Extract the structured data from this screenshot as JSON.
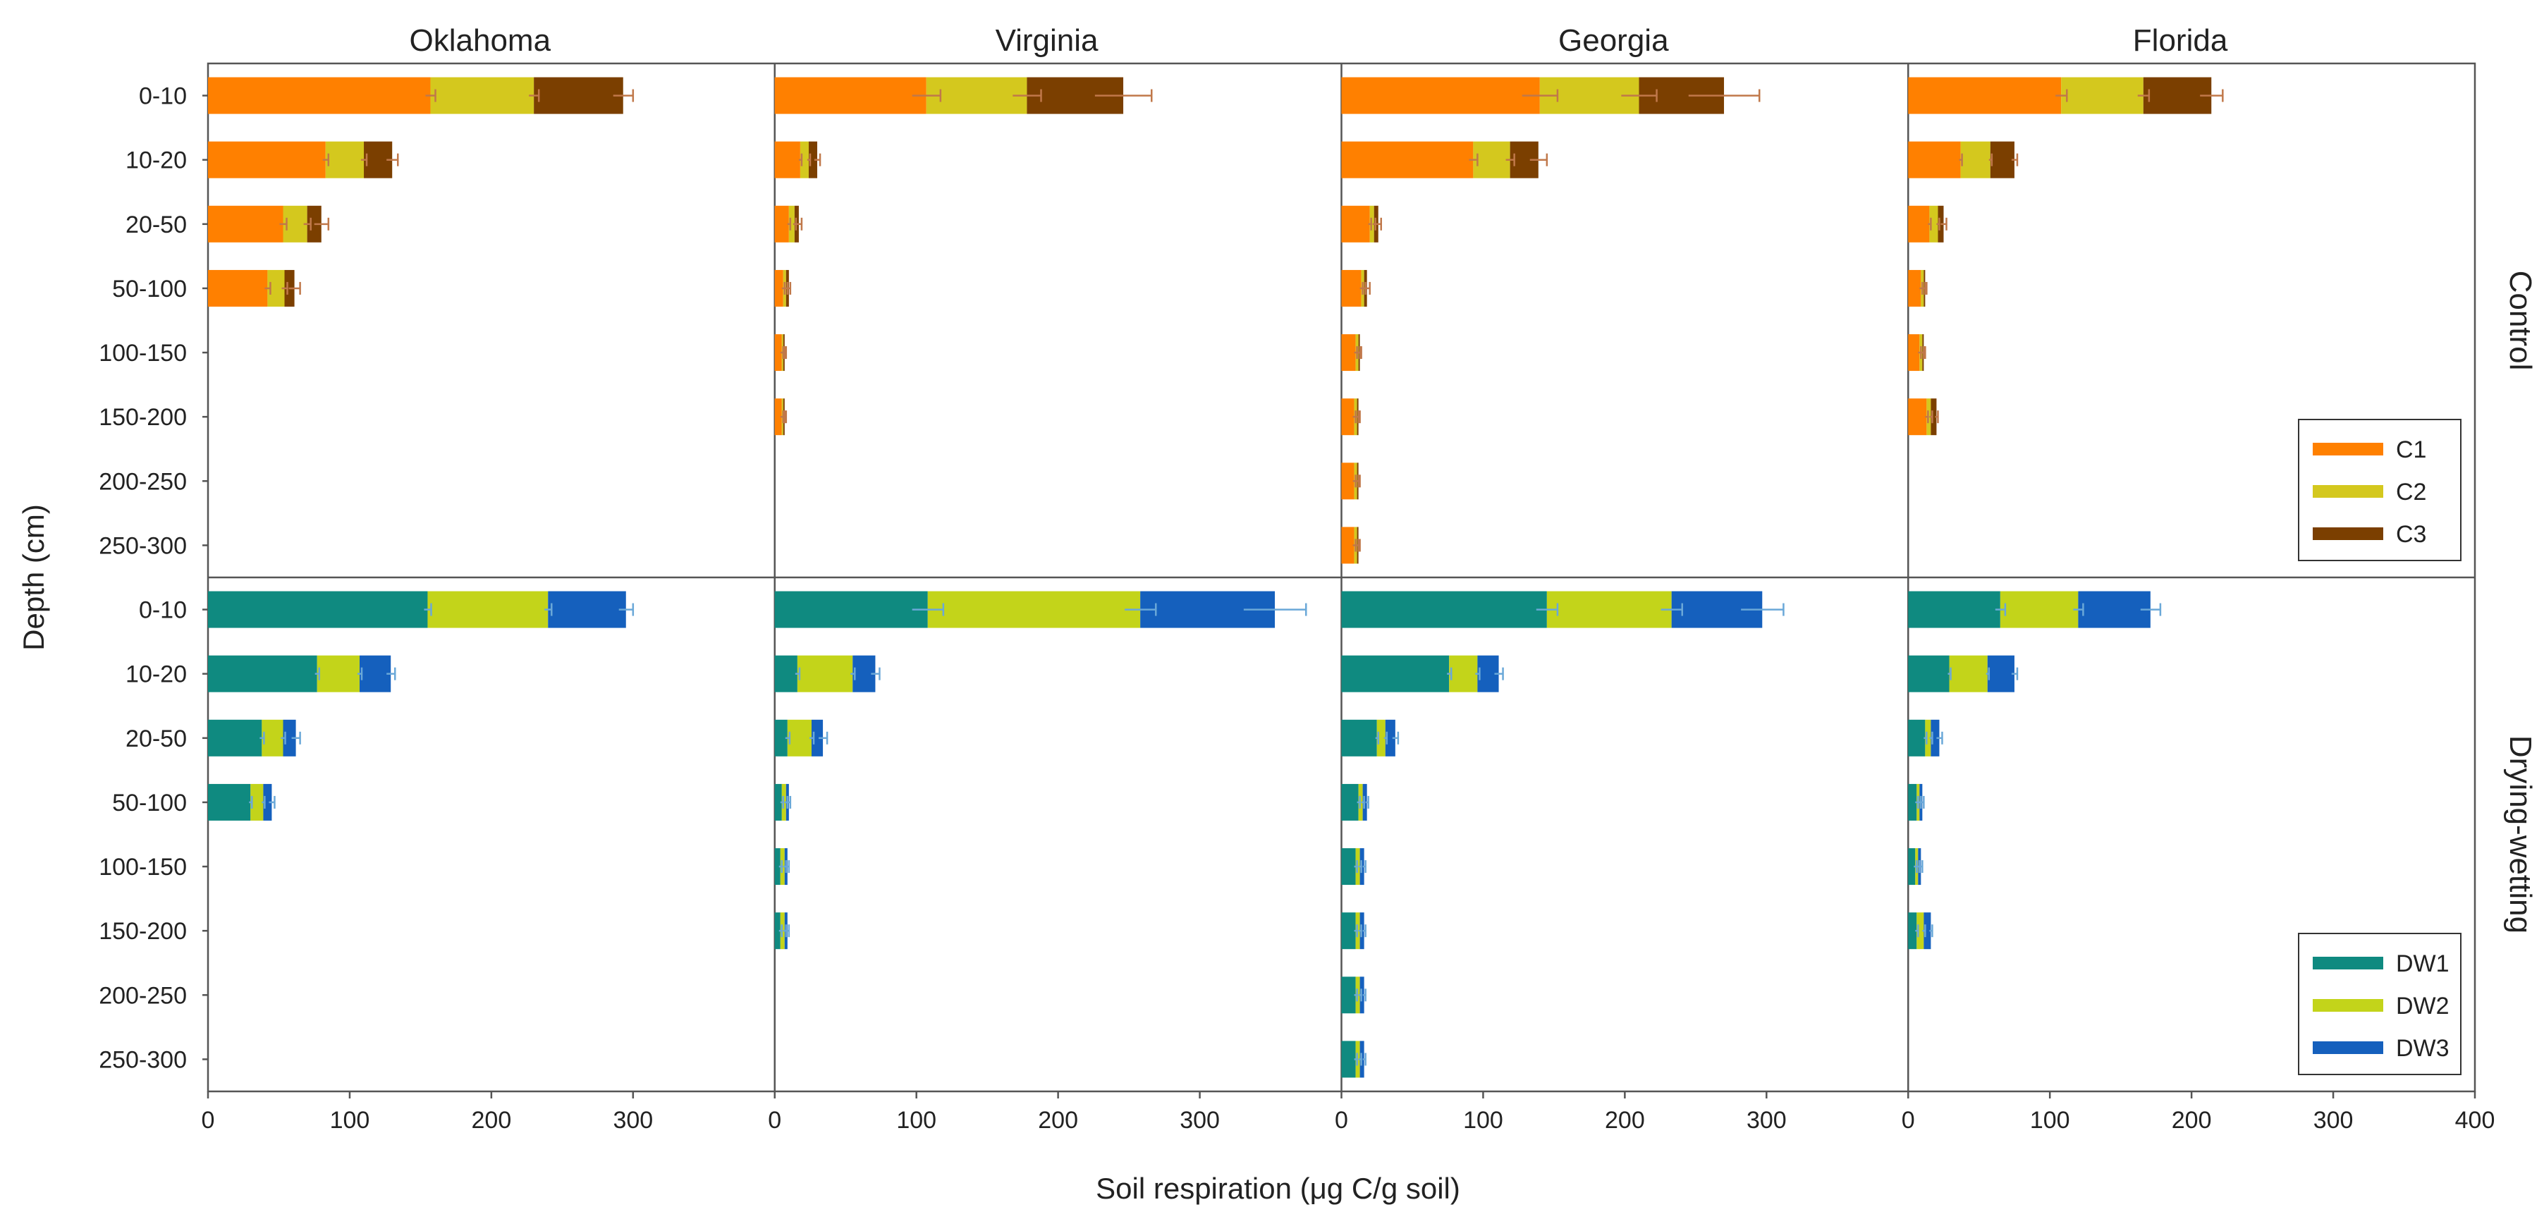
{
  "chart_data": {
    "type": "bar",
    "orientation": "horizontal",
    "stacked": true,
    "xlabel": "Soil respiration (μg C/g soil)",
    "ylabel": "Depth (cm)",
    "xlim": [
      0,
      400
    ],
    "xticks": [
      0,
      100,
      200,
      300,
      400
    ],
    "categories": [
      "0-10",
      "10-20",
      "20-50",
      "50-100",
      "100-150",
      "150-200",
      "200-250",
      "250-300"
    ],
    "sites": [
      "Oklahoma",
      "Virginia",
      "Georgia",
      "Florida"
    ],
    "rows": [
      {
        "label": "Control",
        "series_names": [
          "C1",
          "C2",
          "C3"
        ],
        "colors": [
          "#ff8000",
          "#d4c81e",
          "#7b3f00"
        ],
        "panels": [
          {
            "site": "Oklahoma",
            "values": [
              [
                157,
                73,
                63
              ],
              [
                83,
                27,
                20
              ],
              [
                53,
                17,
                10
              ],
              [
                42,
                12,
                7
              ],
              [
                0,
                0,
                0
              ],
              [
                0,
                0,
                0
              ],
              [
                0,
                0,
                0
              ],
              [
                0,
                0,
                0
              ]
            ],
            "errors": [
              7,
              4,
              5,
              4,
              0,
              0,
              0,
              0
            ]
          },
          {
            "site": "Virginia",
            "values": [
              [
                107,
                71,
                68
              ],
              [
                18,
                6,
                6
              ],
              [
                10,
                4,
                3
              ],
              [
                6,
                2,
                2
              ],
              [
                5,
                1,
                1
              ],
              [
                5,
                1,
                1
              ],
              [
                0,
                0,
                0
              ],
              [
                0,
                0,
                0
              ]
            ],
            "errors": [
              20,
              2,
              2,
              1,
              1,
              1,
              0,
              0
            ]
          },
          {
            "site": "Georgia",
            "values": [
              [
                140,
                70,
                60
              ],
              [
                93,
                26,
                20
              ],
              [
                20,
                3,
                3
              ],
              [
                14,
                2,
                2
              ],
              [
                10,
                2,
                1
              ],
              [
                9,
                2,
                1
              ],
              [
                9,
                2,
                1
              ],
              [
                9,
                2,
                1
              ]
            ],
            "errors": [
              25,
              6,
              2,
              2,
              1,
              1,
              1,
              1
            ]
          },
          {
            "site": "Florida",
            "values": [
              [
                108,
                58,
                48
              ],
              [
                37,
                21,
                17
              ],
              [
                15,
                6,
                4
              ],
              [
                9,
                2,
                1
              ],
              [
                8,
                2,
                1
              ],
              [
                13,
                3,
                4
              ],
              [
                0,
                0,
                0
              ],
              [
                0,
                0,
                0
              ]
            ],
            "errors": [
              8,
              2,
              2,
              1,
              1,
              1,
              0,
              0
            ]
          }
        ],
        "legend_position": "bottom-right"
      },
      {
        "label": "Drying-wetting",
        "series_names": [
          "DW1",
          "DW2",
          "DW3"
        ],
        "colors": [
          "#0f8a80",
          "#c3d41a",
          "#1560bd"
        ],
        "panels": [
          {
            "site": "Oklahoma",
            "values": [
              [
                155,
                85,
                55
              ],
              [
                77,
                30,
                22
              ],
              [
                38,
                15,
                9
              ],
              [
                30,
                9,
                6
              ],
              [
                0,
                0,
                0
              ],
              [
                0,
                0,
                0
              ],
              [
                0,
                0,
                0
              ],
              [
                0,
                0,
                0
              ]
            ],
            "errors": [
              5,
              3,
              3,
              2,
              0,
              0,
              0,
              0
            ]
          },
          {
            "site": "Virginia",
            "values": [
              [
                108,
                150,
                95
              ],
              [
                16,
                39,
                16
              ],
              [
                9,
                17,
                8
              ],
              [
                5,
                3,
                2
              ],
              [
                4,
                3,
                2
              ],
              [
                4,
                3,
                2
              ],
              [
                0,
                0,
                0
              ],
              [
                0,
                0,
                0
              ]
            ],
            "errors": [
              22,
              3,
              3,
              1,
              1,
              1,
              0,
              0
            ]
          },
          {
            "site": "Georgia",
            "values": [
              [
                145,
                88,
                64
              ],
              [
                76,
                20,
                15
              ],
              [
                25,
                6,
                7
              ],
              [
                12,
                3,
                3
              ],
              [
                10,
                3,
                3
              ],
              [
                10,
                3,
                3
              ],
              [
                10,
                3,
                3
              ],
              [
                10,
                3,
                3
              ]
            ],
            "errors": [
              15,
              3,
              2,
              1,
              1,
              1,
              1,
              1
            ]
          },
          {
            "site": "Florida",
            "values": [
              [
                65,
                55,
                51
              ],
              [
                29,
                27,
                19
              ],
              [
                12,
                4,
                6
              ],
              [
                6,
                2,
                2
              ],
              [
                5,
                2,
                2
              ],
              [
                6,
                5,
                5
              ],
              [
                0,
                0,
                0
              ],
              [
                0,
                0,
                0
              ]
            ],
            "errors": [
              7,
              2,
              2,
              1,
              1,
              1,
              0,
              0
            ]
          }
        ],
        "legend_position": "bottom-right"
      }
    ]
  }
}
